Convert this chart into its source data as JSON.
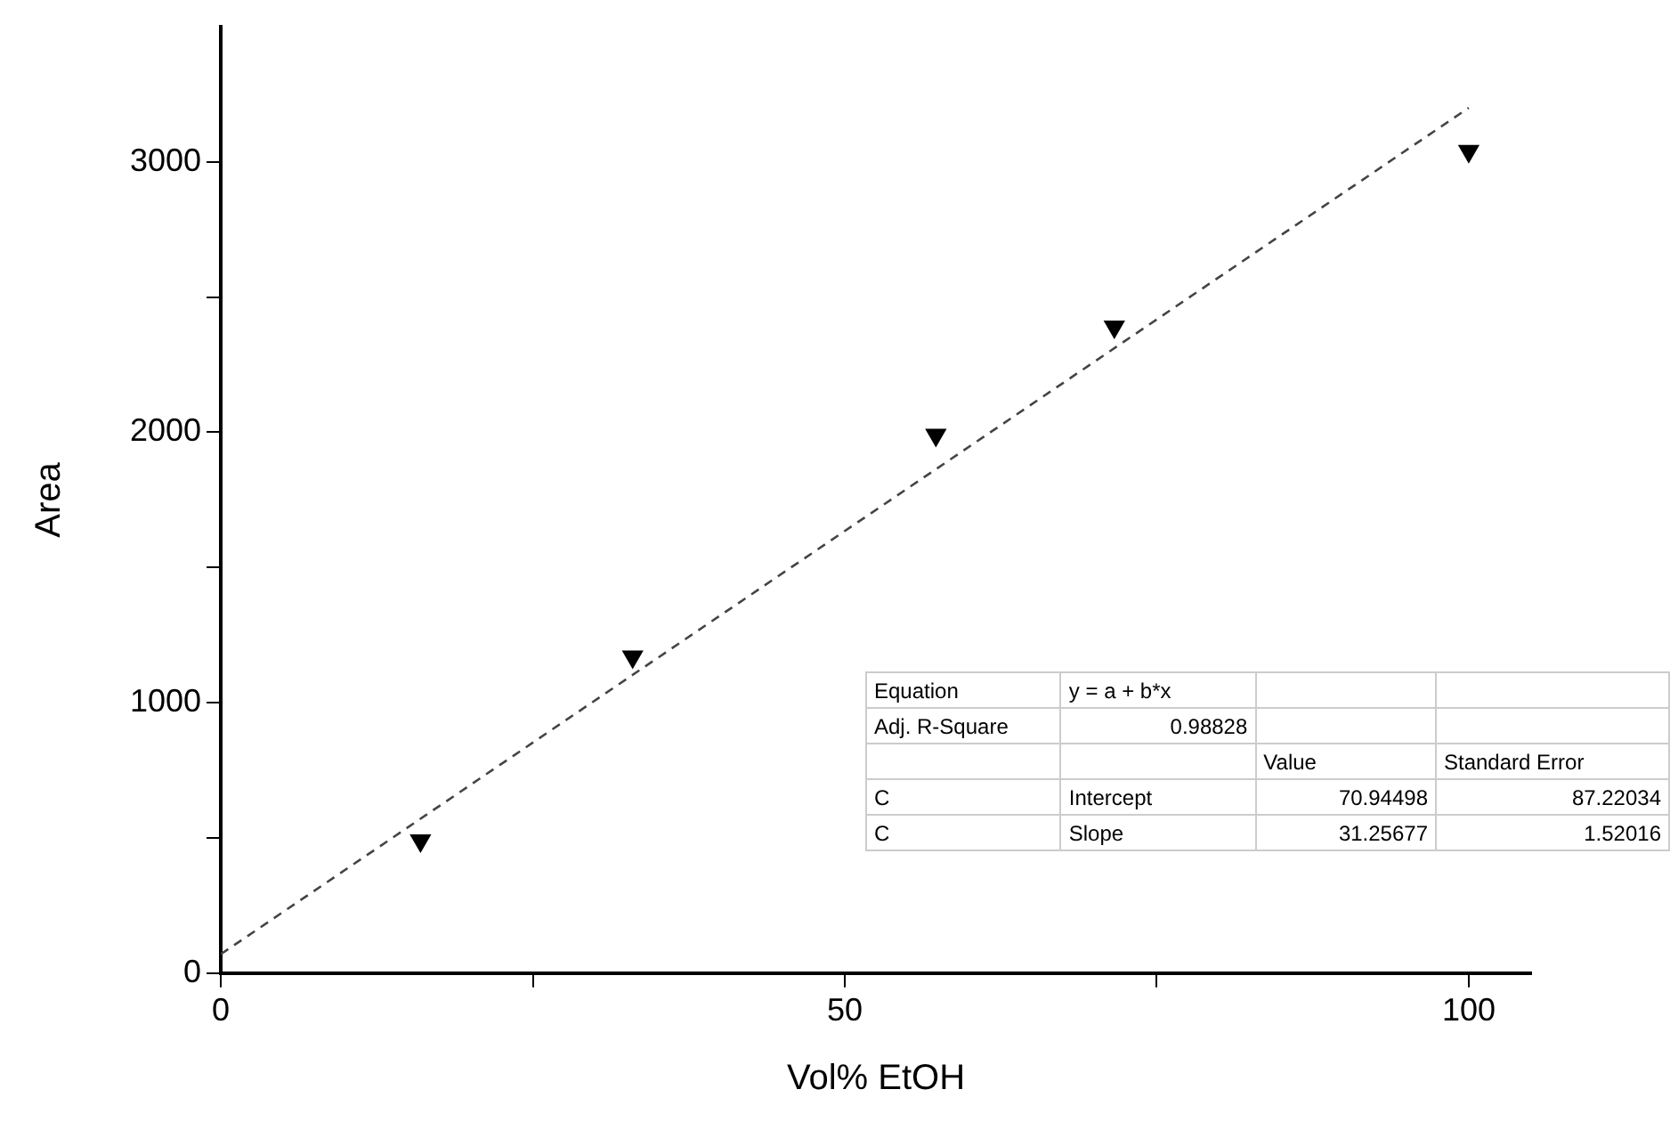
{
  "chart_data": {
    "type": "scatter",
    "xlabel": "Vol% EtOH",
    "ylabel": "Area",
    "xlim": [
      0,
      105
    ],
    "ylim": [
      0,
      3500
    ],
    "xticks": [
      0,
      {
        "value": 25,
        "label": null
      },
      50,
      {
        "value": 75,
        "label": null
      },
      100
    ],
    "yticks": [
      0,
      {
        "value": 500,
        "label": null
      },
      1000,
      {
        "value": 1500,
        "label": null
      },
      2000,
      {
        "value": 2500,
        "label": null
      },
      3000
    ],
    "grid": false,
    "legend": false,
    "marker": "triangle",
    "series": [
      {
        "color": "#000000",
        "x": [
          16,
          33,
          57.3,
          71.6,
          100
        ],
        "values": [
          490,
          1170,
          1990,
          2390,
          3040
        ]
      },
      {
        "type": "line",
        "color": "#444444",
        "line_style": "dashed",
        "marker": "none",
        "x": [
          0,
          100
        ],
        "values": [
          70,
          3200
        ]
      }
    ],
    "annotations": [
      "Equation\ty = a + b*x",
      "Adj. R-Square\t0.98828",
      "\t\tValue\tStandard Error",
      "C\tIntercept\t70.94498\t87.22034",
      "C\tSlope\t31.25677\t1.52016"
    ]
  }
}
